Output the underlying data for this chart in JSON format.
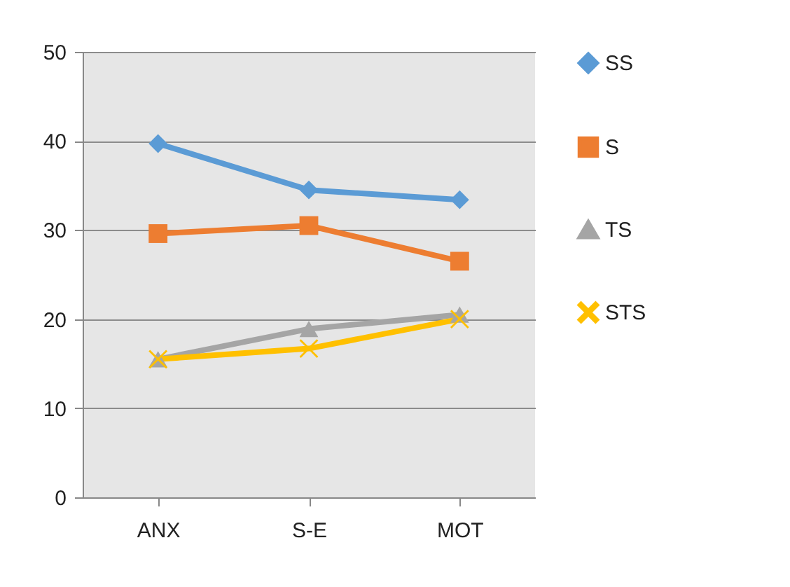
{
  "chart_data": {
    "type": "line",
    "categories": [
      "ANX",
      "S-E",
      "MOT"
    ],
    "series": [
      {
        "name": "SS",
        "color": "#5b9bd5",
        "marker": "diamond",
        "values": [
          39.7,
          34.5,
          33.4
        ]
      },
      {
        "name": "S",
        "color": "#ed7d31",
        "marker": "square",
        "values": [
          29.6,
          30.5,
          26.5
        ]
      },
      {
        "name": "TS",
        "color": "#a5a5a5",
        "marker": "triangle",
        "values": [
          15.5,
          18.9,
          20.5
        ]
      },
      {
        "name": "STS",
        "color": "#ffc000",
        "marker": "cross",
        "values": [
          15.5,
          16.7,
          20
        ]
      }
    ],
    "ylim": [
      0,
      50
    ],
    "yticks": [
      0,
      10,
      20,
      30,
      40,
      50
    ],
    "grid": "y",
    "legend": "right",
    "line_style": "solid"
  }
}
